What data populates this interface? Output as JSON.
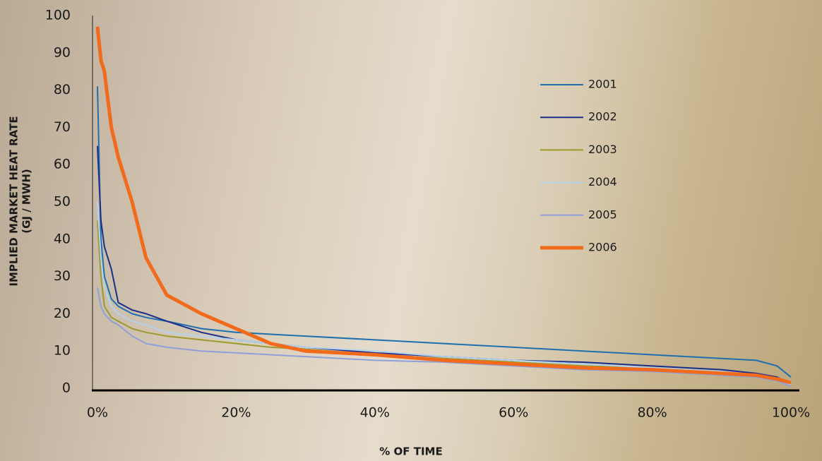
{
  "chart_data": {
    "type": "line",
    "y_label": [
      "IMPLIED MARKET HEAT RATE",
      "(GJ / MWH)"
    ],
    "x_label": "% OF TIME",
    "x": [
      0,
      0.5,
      1,
      2,
      3,
      5,
      7,
      10,
      15,
      20,
      25,
      30,
      40,
      50,
      60,
      70,
      80,
      90,
      95,
      98,
      100
    ],
    "series": [
      {
        "name": "2001",
        "color": "#1f6fae",
        "line_width": 2,
        "values": [
          81,
          40,
          30,
          24,
          22,
          20,
          19,
          18,
          16,
          15,
          14.5,
          14,
          13,
          12,
          11,
          10,
          9,
          8,
          7.5,
          6,
          3
        ]
      },
      {
        "name": "2002",
        "color": "#1c2f8a",
        "line_width": 2,
        "values": [
          65,
          45,
          38,
          32,
          23,
          21,
          20,
          18,
          15,
          13,
          12,
          11,
          9.5,
          8.5,
          7.5,
          7,
          6,
          5,
          4,
          3,
          1
        ]
      },
      {
        "name": "2003",
        "color": "#9a9a2e",
        "line_width": 2,
        "values": [
          45,
          30,
          22,
          19,
          18,
          16,
          15,
          14,
          13,
          12,
          11,
          10.5,
          9,
          8,
          7,
          6,
          5.5,
          4.5,
          3.5,
          2.5,
          1
        ]
      },
      {
        "name": "2004",
        "color": "#b4d2ec",
        "line_width": 2,
        "values": [
          50,
          35,
          27,
          22,
          20,
          18,
          17,
          15,
          14,
          13,
          12,
          11,
          10,
          8.5,
          7.5,
          6.5,
          5.5,
          4.5,
          3.5,
          2.5,
          1
        ]
      },
      {
        "name": "2005",
        "color": "#8f9fd8",
        "line_width": 2,
        "values": [
          27,
          22,
          20,
          18,
          17,
          14,
          12,
          11,
          10,
          9.5,
          9,
          8.5,
          7.5,
          7,
          6,
          5,
          4.5,
          3.5,
          3,
          2,
          0.5
        ]
      },
      {
        "name": "2006",
        "color": "#f26a1b",
        "line_width": 5,
        "values": [
          97,
          88,
          85,
          70,
          62,
          50,
          35,
          25,
          20,
          16,
          12,
          10,
          9,
          7.5,
          6.5,
          5.5,
          5,
          4,
          3.5,
          2.5,
          1.5
        ]
      }
    ],
    "xlim": [
      0,
      100
    ],
    "xticks": [
      {
        "value": 0,
        "label": "0%"
      },
      {
        "value": 20,
        "label": "20%"
      },
      {
        "value": 40,
        "label": "40%"
      },
      {
        "value": 60,
        "label": "60%"
      },
      {
        "value": 80,
        "label": "80%"
      },
      {
        "value": 100,
        "label": "100%"
      }
    ],
    "ylim": [
      0,
      100
    ],
    "yticks": [
      0,
      10,
      20,
      30,
      40,
      50,
      60,
      70,
      80,
      90,
      100
    ],
    "grid": false,
    "legend": "right"
  }
}
